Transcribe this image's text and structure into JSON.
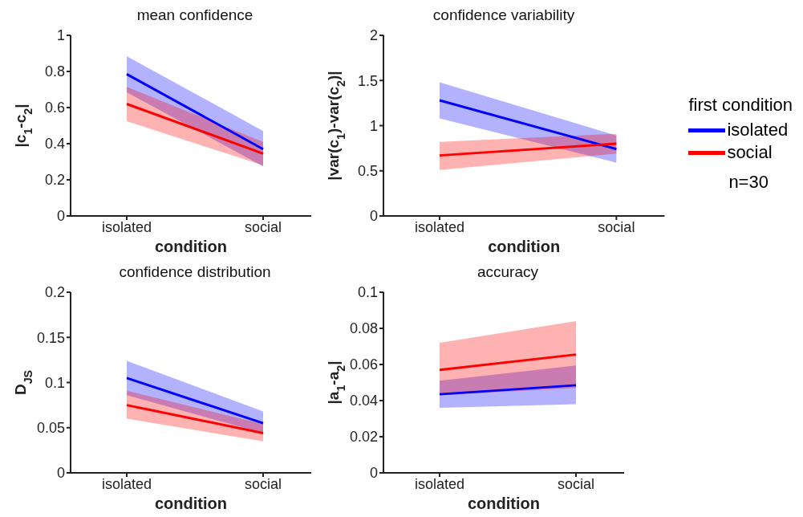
{
  "chart_data": [
    {
      "type": "line",
      "title": "mean confidence",
      "xlabel": "condition",
      "ylabel": "|c$_{1}$-c$_{2}$|",
      "categories": [
        "isolated",
        "social"
      ],
      "ylim": [
        0,
        1
      ],
      "yticks": [
        0,
        0.2,
        0.4,
        0.6,
        0.8,
        1
      ],
      "grid": false,
      "legend": false,
      "marker": "none",
      "line_style": "solid",
      "series": [
        {
          "color": "#0000ff",
          "values": [
            0.785,
            0.37
          ],
          "lower": [
            0.685,
            0.275
          ],
          "upper": [
            0.885,
            0.47
          ]
        },
        {
          "color": "#ff0000",
          "values": [
            0.62,
            0.345
          ],
          "lower": [
            0.525,
            0.28
          ],
          "upper": [
            0.715,
            0.41
          ]
        }
      ]
    },
    {
      "type": "line",
      "title": "confidence variability",
      "xlabel": "condition",
      "ylabel": "|var(c$_{1}$)-var(c$_{2}$)|",
      "categories": [
        "isolated",
        "social"
      ],
      "ylim": [
        0,
        2
      ],
      "yticks": [
        0,
        0.5,
        1,
        1.5,
        2
      ],
      "grid": false,
      "legend": "right",
      "legend_title": "first condition",
      "annotations": [
        "n=30"
      ],
      "marker": "none",
      "line_style": "solid",
      "series": [
        {
          "name": "isolated",
          "color": "#0000ff",
          "values": [
            1.28,
            0.74
          ],
          "lower": [
            1.08,
            0.59
          ],
          "upper": [
            1.48,
            0.89
          ]
        },
        {
          "name": "social",
          "color": "#ff0000",
          "values": [
            0.67,
            0.8
          ],
          "lower": [
            0.51,
            0.69
          ],
          "upper": [
            0.82,
            0.91
          ]
        }
      ]
    },
    {
      "type": "line",
      "title": "confidence distribution",
      "xlabel": "condition",
      "ylabel": "D$_{JS}$",
      "categories": [
        "isolated",
        "social"
      ],
      "ylim": [
        0,
        0.2
      ],
      "yticks": [
        0,
        0.05,
        0.1,
        0.15,
        0.2
      ],
      "grid": false,
      "legend": false,
      "marker": "none",
      "line_style": "solid",
      "series": [
        {
          "color": "#0000ff",
          "values": [
            0.105,
            0.055
          ],
          "lower": [
            0.086,
            0.044
          ],
          "upper": [
            0.124,
            0.068
          ]
        },
        {
          "color": "#ff0000",
          "values": [
            0.075,
            0.044
          ],
          "lower": [
            0.06,
            0.035
          ],
          "upper": [
            0.091,
            0.054
          ]
        }
      ]
    },
    {
      "type": "line",
      "title": "accuracy",
      "xlabel": "condition",
      "ylabel": "|a$_{1}$-a$_{2}$|",
      "categories": [
        "isolated",
        "social"
      ],
      "ylim": [
        0,
        0.1
      ],
      "yticks": [
        0,
        0.02,
        0.04,
        0.06,
        0.08,
        0.1
      ],
      "grid": false,
      "legend": false,
      "marker": "none",
      "line_style": "solid",
      "series": [
        {
          "color": "#0000ff",
          "values": [
            0.0435,
            0.0485
          ],
          "lower": [
            0.036,
            0.038
          ],
          "upper": [
            0.051,
            0.0595
          ]
        },
        {
          "color": "#ff0000",
          "values": [
            0.057,
            0.0655
          ],
          "lower": [
            0.043,
            0.047
          ],
          "upper": [
            0.072,
            0.084
          ]
        }
      ]
    }
  ]
}
